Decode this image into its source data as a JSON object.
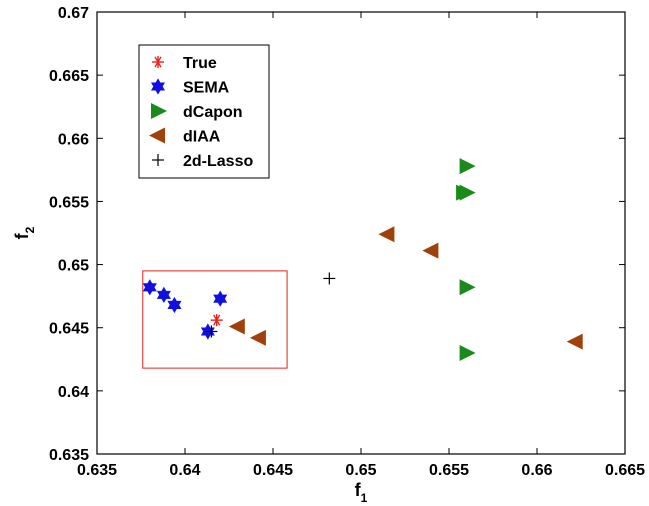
{
  "chart_data": {
    "type": "scatter",
    "title": "",
    "xlabel": {
      "main": "f",
      "sub": "1"
    },
    "ylabel": {
      "main": "f",
      "sub": "2"
    },
    "xlim": [
      0.635,
      0.665
    ],
    "ylim": [
      0.635,
      0.67
    ],
    "xticks": [
      0.635,
      0.64,
      0.645,
      0.65,
      0.655,
      0.66,
      0.665
    ],
    "yticks": [
      0.635,
      0.64,
      0.645,
      0.65,
      0.655,
      0.66,
      0.665,
      0.67
    ],
    "xtick_labels": [
      "0.635",
      "0.64",
      "0.645",
      "0.65",
      "0.655",
      "0.66",
      "0.665"
    ],
    "ytick_labels": [
      "0.635",
      "0.64",
      "0.645",
      "0.65",
      "0.655",
      "0.66",
      "0.665",
      "0.67"
    ],
    "grid": false,
    "legend_position": "top-left",
    "highlight_box": {
      "x": [
        0.6376,
        0.6458
      ],
      "y": [
        0.6418,
        0.6495
      ],
      "color": "#e8201a"
    },
    "series": [
      {
        "name": "True",
        "marker": "asterisk",
        "color": "#e8201a",
        "points": [
          [
            0.6418,
            0.6456
          ]
        ]
      },
      {
        "name": "SEMA",
        "marker": "hexagram",
        "color": "#1010e0",
        "points": [
          [
            0.638,
            0.6482
          ],
          [
            0.6388,
            0.6476
          ],
          [
            0.6394,
            0.6468
          ],
          [
            0.6413,
            0.6447
          ],
          [
            0.642,
            0.6473
          ]
        ]
      },
      {
        "name": "dCapon",
        "marker": "triangle-right",
        "color": "#1a8a1a",
        "points": [
          [
            0.656,
            0.6578
          ],
          [
            0.6558,
            0.6557
          ],
          [
            0.656,
            0.6557
          ],
          [
            0.656,
            0.6482
          ],
          [
            0.656,
            0.643
          ]
        ]
      },
      {
        "name": "dIAA",
        "marker": "triangle-left",
        "color": "#a0400a",
        "points": [
          [
            0.643,
            0.6451
          ],
          [
            0.6442,
            0.6442
          ],
          [
            0.6515,
            0.6524
          ],
          [
            0.654,
            0.6511
          ],
          [
            0.6622,
            0.6439
          ]
        ]
      },
      {
        "name": "2d-Lasso",
        "marker": "plus",
        "color": "#000000",
        "points": [
          [
            0.6415,
            0.6447
          ],
          [
            0.6482,
            0.6489
          ]
        ]
      }
    ]
  }
}
